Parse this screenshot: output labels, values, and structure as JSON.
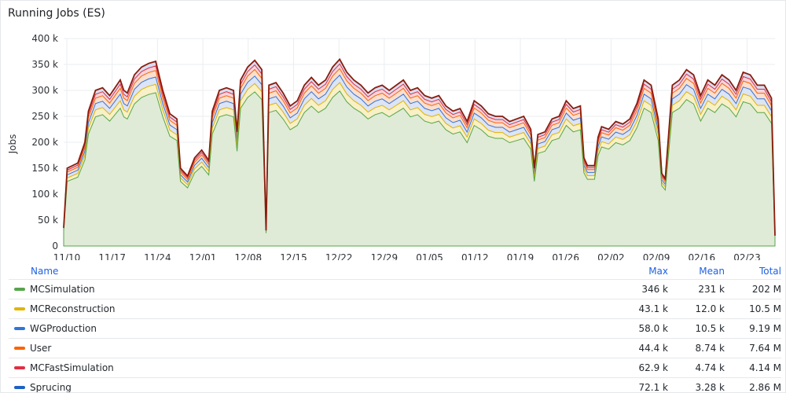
{
  "panel": {
    "title": "Running Jobs (ES)"
  },
  "chart_data": {
    "type": "area",
    "title": "Running Jobs (ES)",
    "ylabel": "Jobs",
    "ylim": [
      0,
      400000
    ],
    "y_ticks": [
      "0",
      "50 k",
      "100 k",
      "150 k",
      "200 k",
      "250 k",
      "300 k",
      "350 k",
      "400 k"
    ],
    "x_ticks": [
      "11/10",
      "11/17",
      "11/24",
      "12/01",
      "12/08",
      "12/15",
      "12/22",
      "12/29",
      "01/05",
      "01/12",
      "01/19",
      "01/26",
      "02/02",
      "02/09",
      "02/16",
      "02/23"
    ],
    "grid": true,
    "stacked": true,
    "total_series": [
      {
        "t": 0,
        "v": 35
      },
      {
        "t": 0.5,
        "v": 150
      },
      {
        "t": 2,
        "v": 160
      },
      {
        "t": 3,
        "v": 200
      },
      {
        "t": 3.5,
        "v": 260
      },
      {
        "t": 4.5,
        "v": 300
      },
      {
        "t": 5.5,
        "v": 305
      },
      {
        "t": 6.5,
        "v": 290
      },
      {
        "t": 7,
        "v": 300
      },
      {
        "t": 8,
        "v": 320
      },
      {
        "t": 8.5,
        "v": 300
      },
      {
        "t": 9,
        "v": 295
      },
      {
        "t": 10,
        "v": 330
      },
      {
        "t": 11,
        "v": 345
      },
      {
        "t": 12,
        "v": 352
      },
      {
        "t": 13,
        "v": 356
      },
      {
        "t": 14,
        "v": 300
      },
      {
        "t": 15,
        "v": 255
      },
      {
        "t": 16,
        "v": 245
      },
      {
        "t": 16.5,
        "v": 150
      },
      {
        "t": 17.5,
        "v": 135
      },
      {
        "t": 18.5,
        "v": 170
      },
      {
        "t": 19.5,
        "v": 185
      },
      {
        "t": 20.5,
        "v": 165
      },
      {
        "t": 21,
        "v": 260
      },
      {
        "t": 22,
        "v": 300
      },
      {
        "t": 23,
        "v": 305
      },
      {
        "t": 24,
        "v": 300
      },
      {
        "t": 24.5,
        "v": 220
      },
      {
        "t": 25,
        "v": 320
      },
      {
        "t": 26,
        "v": 345
      },
      {
        "t": 27,
        "v": 358
      },
      {
        "t": 28,
        "v": 340
      },
      {
        "t": 28.6,
        "v": 30
      },
      {
        "t": 29,
        "v": 310
      },
      {
        "t": 30,
        "v": 315
      },
      {
        "t": 31,
        "v": 295
      },
      {
        "t": 32,
        "v": 270
      },
      {
        "t": 33,
        "v": 280
      },
      {
        "t": 34,
        "v": 310
      },
      {
        "t": 35,
        "v": 325
      },
      {
        "t": 36,
        "v": 310
      },
      {
        "t": 37,
        "v": 320
      },
      {
        "t": 38,
        "v": 345
      },
      {
        "t": 39,
        "v": 360
      },
      {
        "t": 40,
        "v": 335
      },
      {
        "t": 41,
        "v": 320
      },
      {
        "t": 42,
        "v": 310
      },
      {
        "t": 43,
        "v": 295
      },
      {
        "t": 44,
        "v": 305
      },
      {
        "t": 45,
        "v": 310
      },
      {
        "t": 46,
        "v": 300
      },
      {
        "t": 47,
        "v": 310
      },
      {
        "t": 48,
        "v": 320
      },
      {
        "t": 49,
        "v": 300
      },
      {
        "t": 50,
        "v": 305
      },
      {
        "t": 51,
        "v": 290
      },
      {
        "t": 52,
        "v": 285
      },
      {
        "t": 53,
        "v": 290
      },
      {
        "t": 54,
        "v": 270
      },
      {
        "t": 55,
        "v": 260
      },
      {
        "t": 56,
        "v": 265
      },
      {
        "t": 57,
        "v": 240
      },
      {
        "t": 58,
        "v": 280
      },
      {
        "t": 59,
        "v": 270
      },
      {
        "t": 60,
        "v": 255
      },
      {
        "t": 61,
        "v": 250
      },
      {
        "t": 62,
        "v": 250
      },
      {
        "t": 63,
        "v": 240
      },
      {
        "t": 64,
        "v": 245
      },
      {
        "t": 65,
        "v": 250
      },
      {
        "t": 66,
        "v": 225
      },
      {
        "t": 66.5,
        "v": 150
      },
      {
        "t": 67,
        "v": 215
      },
      {
        "t": 68,
        "v": 220
      },
      {
        "t": 69,
        "v": 245
      },
      {
        "t": 70,
        "v": 250
      },
      {
        "t": 71,
        "v": 280
      },
      {
        "t": 72,
        "v": 265
      },
      {
        "t": 73,
        "v": 270
      },
      {
        "t": 73.5,
        "v": 170
      },
      {
        "t": 74,
        "v": 155
      },
      {
        "t": 75,
        "v": 155
      },
      {
        "t": 75.5,
        "v": 210
      },
      {
        "t": 76,
        "v": 230
      },
      {
        "t": 77,
        "v": 225
      },
      {
        "t": 78,
        "v": 240
      },
      {
        "t": 79,
        "v": 235
      },
      {
        "t": 80,
        "v": 245
      },
      {
        "t": 81,
        "v": 275
      },
      {
        "t": 82,
        "v": 320
      },
      {
        "t": 83,
        "v": 310
      },
      {
        "t": 84,
        "v": 245
      },
      {
        "t": 84.5,
        "v": 140
      },
      {
        "t": 85,
        "v": 130
      },
      {
        "t": 86,
        "v": 310
      },
      {
        "t": 87,
        "v": 320
      },
      {
        "t": 88,
        "v": 340
      },
      {
        "t": 89,
        "v": 330
      },
      {
        "t": 90,
        "v": 290
      },
      {
        "t": 91,
        "v": 320
      },
      {
        "t": 92,
        "v": 310
      },
      {
        "t": 93,
        "v": 330
      },
      {
        "t": 94,
        "v": 320
      },
      {
        "t": 95,
        "v": 300
      },
      {
        "t": 96,
        "v": 335
      },
      {
        "t": 97,
        "v": 330
      },
      {
        "t": 98,
        "v": 310
      },
      {
        "t": 99,
        "v": 310
      },
      {
        "t": 100,
        "v": 285
      },
      {
        "t": 100.5,
        "v": 20
      }
    ],
    "series": [
      {
        "name": "MCSimulation",
        "color": "#56a64b",
        "fill": "#dcead7",
        "max": "346 k",
        "mean": "231 k",
        "total": "202 M"
      },
      {
        "name": "MCReconstruction",
        "color": "#e0b400",
        "fill": "#fbf1c2",
        "max": "43.1 k",
        "mean": "12.0 k",
        "total": "10.5 M"
      },
      {
        "name": "WGProduction",
        "color": "#3274d9",
        "fill": "#d8e4fa",
        "max": "58.0 k",
        "mean": "10.5 k",
        "total": "9.19 M"
      },
      {
        "name": "User",
        "color": "#fa6400",
        "fill": "#fde0cb",
        "max": "44.4 k",
        "mean": "8.74 k",
        "total": "7.64 M"
      },
      {
        "name": "MCFastSimulation",
        "color": "#e02f44",
        "fill": "#f9d3d8",
        "max": "62.9 k",
        "mean": "4.74 k",
        "total": "4.14 M"
      },
      {
        "name": "Sprucing",
        "color": "#1f60c4",
        "fill": "#d0dcf3",
        "max": "72.1 k",
        "mean": "3.28 k",
        "total": "2.86 M"
      }
    ]
  },
  "legend": {
    "headers": {
      "name": "Name",
      "max": "Max",
      "mean": "Mean",
      "total": "Total"
    }
  }
}
